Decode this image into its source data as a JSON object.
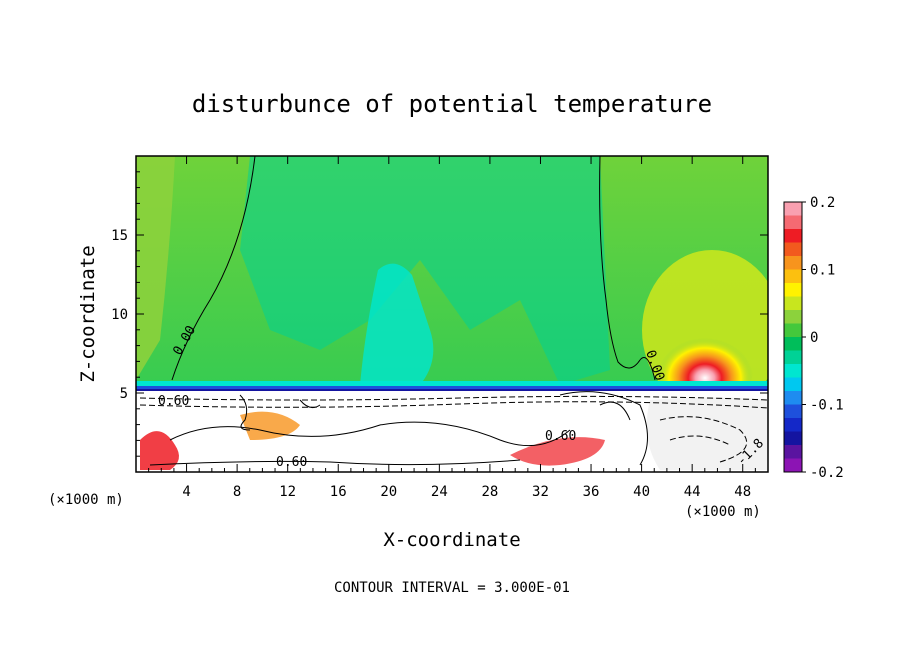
{
  "chart_data": {
    "type": "heatmap",
    "title": "disturbunce of potential temperature",
    "xlabel": "X-coordinate",
    "ylabel": "Z-coordinate",
    "x_units_left": "(×1000 m)",
    "x_units_right": "(×1000 m)",
    "xlim": [
      0,
      50
    ],
    "ylim": [
      0,
      20
    ],
    "x_ticks": [
      4,
      8,
      12,
      16,
      20,
      24,
      28,
      32,
      36,
      40,
      44,
      48
    ],
    "y_ticks": [
      5,
      10,
      15
    ],
    "colorbar": {
      "range": [
        -0.2,
        0.2
      ],
      "tick_labels": [
        "0.2",
        "0.1",
        "0",
        "-0.1",
        "-0.2"
      ],
      "tick_values": [
        0.2,
        0.1,
        0,
        -0.1,
        -0.2
      ],
      "colors": [
        "#f9a0b0",
        "#f56a72",
        "#ee1c24",
        "#f25a1e",
        "#f7941d",
        "#fcc00f",
        "#fff200",
        "#c8e61e",
        "#8cd23c",
        "#44c83c",
        "#00be5a",
        "#00d296",
        "#00e6d0",
        "#00c8f0",
        "#1e8cf0",
        "#1e50dc",
        "#1428c8",
        "#1414a0",
        "#5a14a0",
        "#8c14b4"
      ]
    },
    "contour_labels": [
      "0.00",
      "0.00",
      "0.60",
      "0.60",
      "0.60",
      "-1.8"
    ],
    "footer": "CONTOUR INTERVAL = 3.000E-01"
  }
}
